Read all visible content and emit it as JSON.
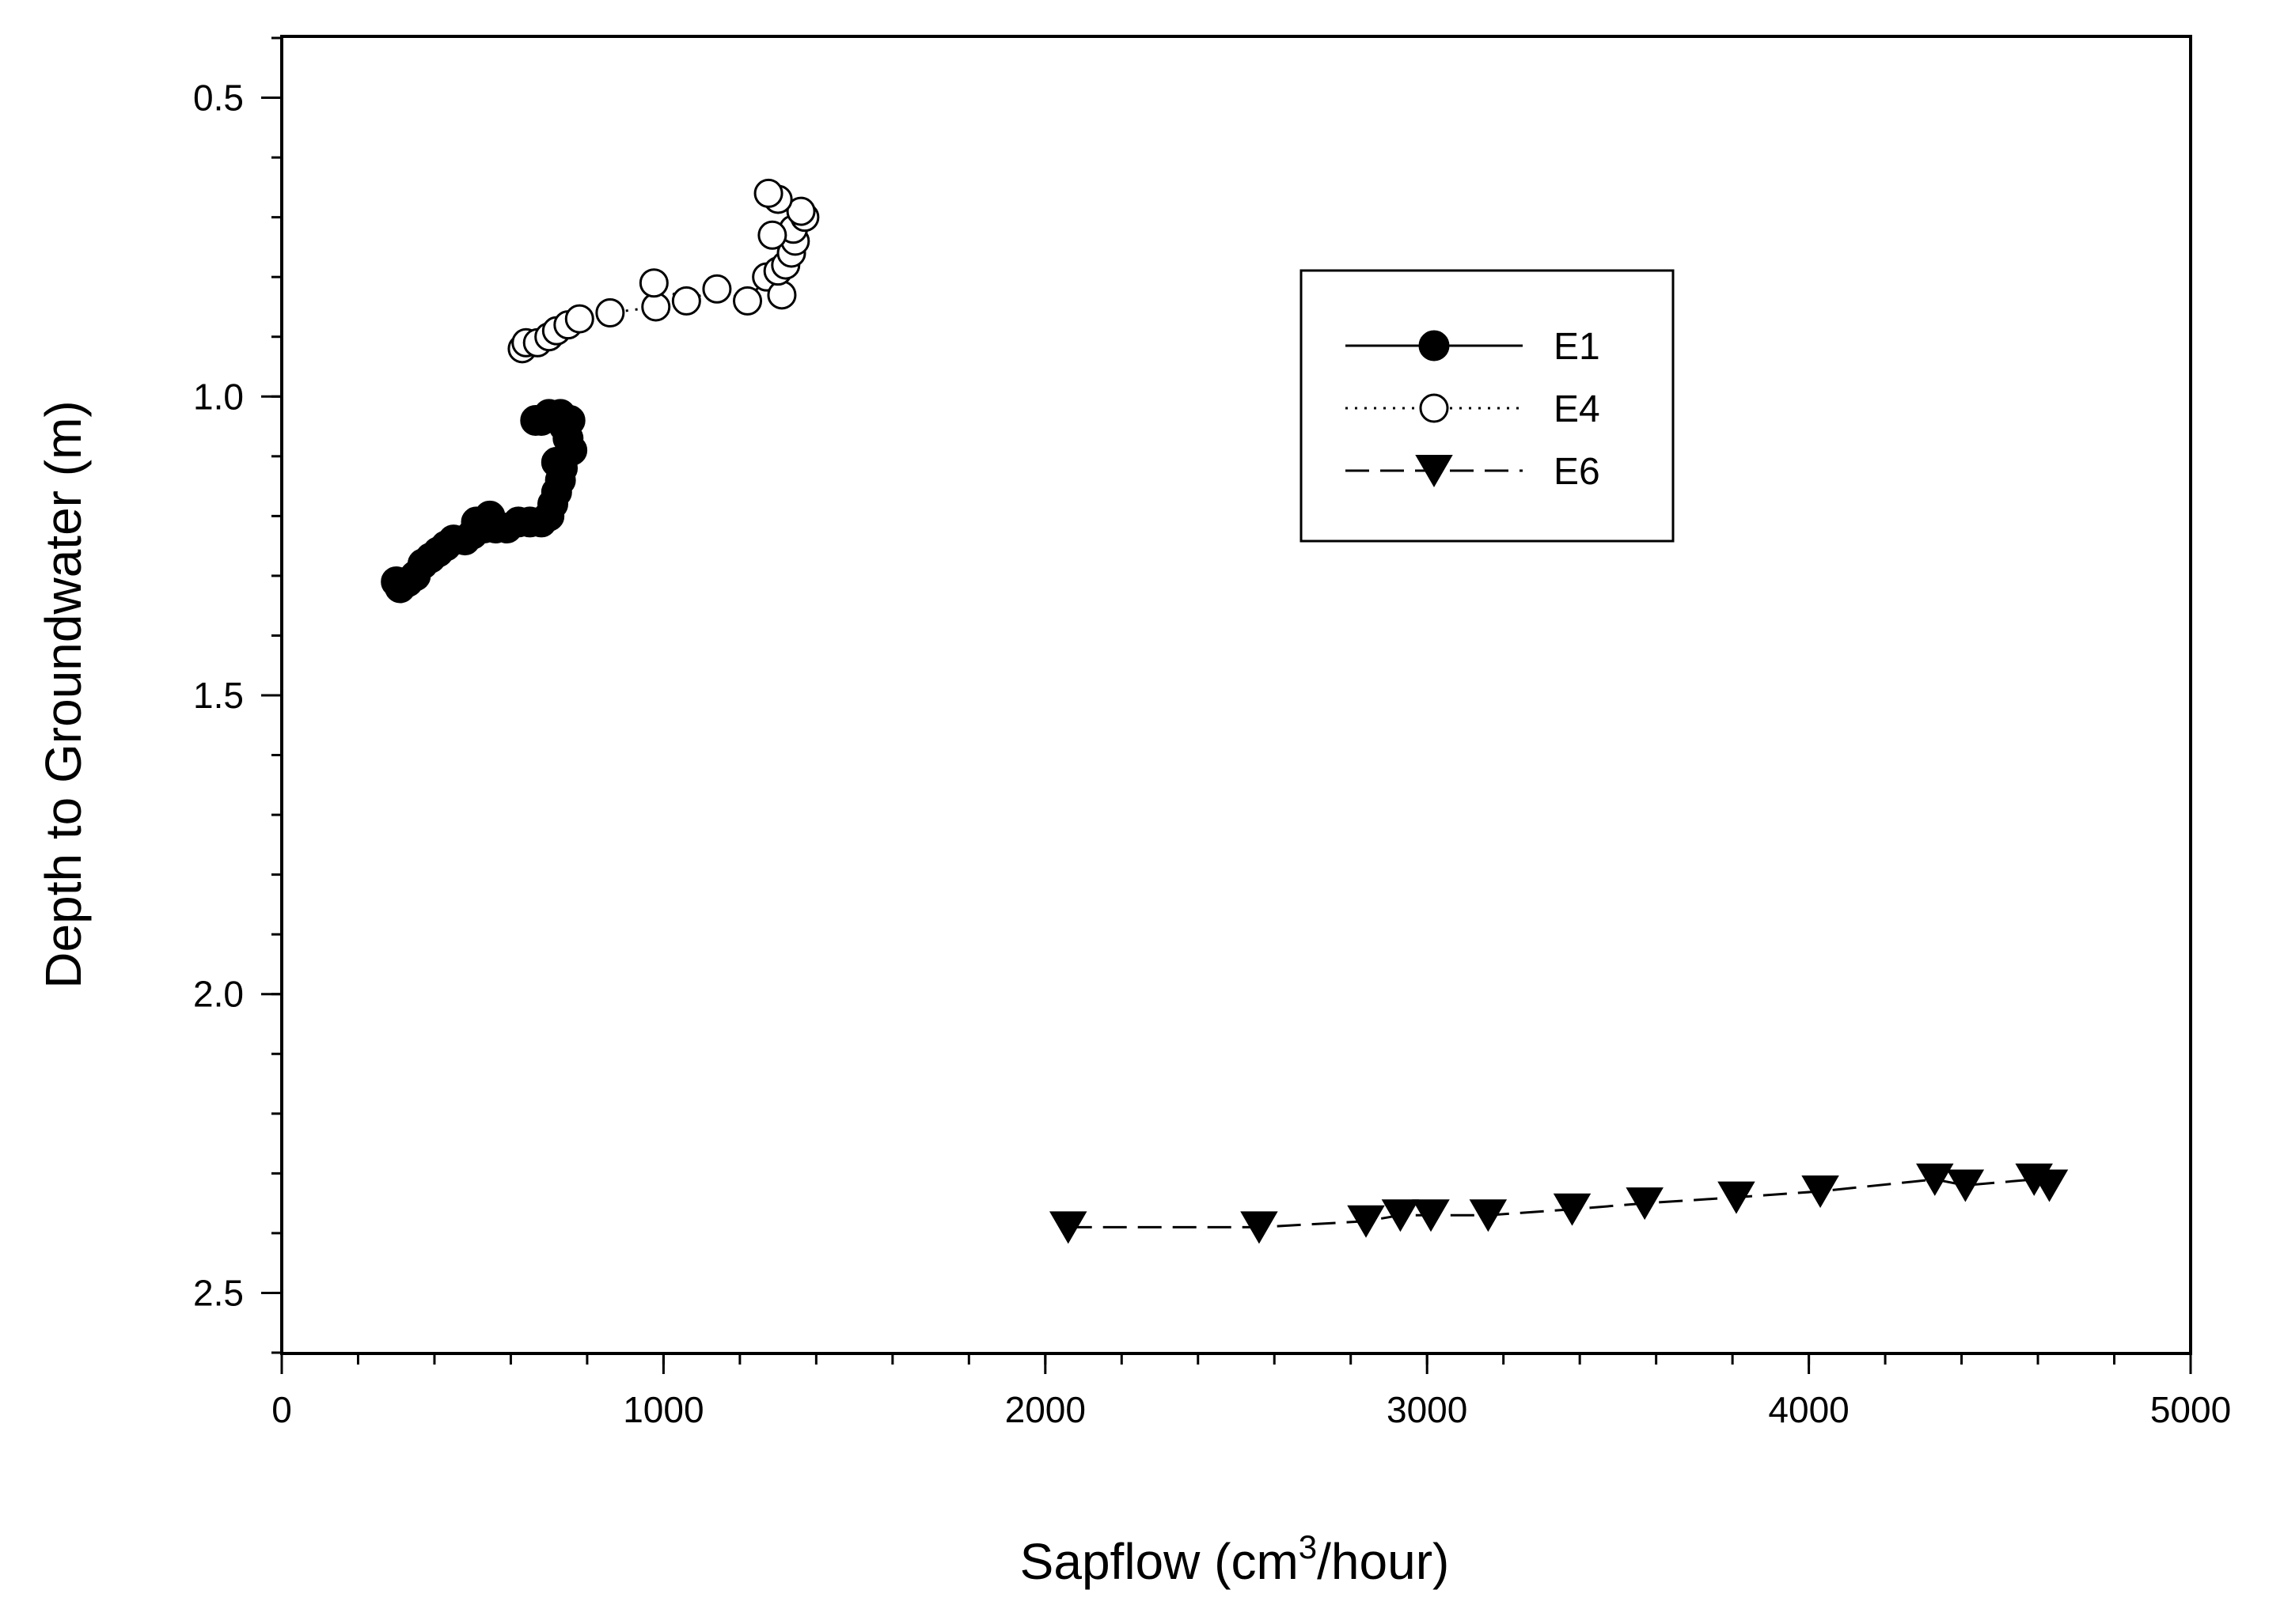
{
  "chart_data": {
    "type": "scatter",
    "title": "",
    "xlabel": "Sapflow (cm",
    "xlabel_superscript": "3",
    "xlabel_suffix": "/hour)",
    "ylabel": "Depth to Groundwater (m)",
    "xlim": [
      0,
      5000
    ],
    "ylim": [
      0.4,
      2.6
    ],
    "y_inverted": true,
    "grid": false,
    "legend_position": "upper-right",
    "x_ticks": [
      {
        "value": 0,
        "label": "0"
      },
      {
        "value": 1000,
        "label": "1000"
      },
      {
        "value": 2000,
        "label": "2000"
      },
      {
        "value": 3000,
        "label": "3000"
      },
      {
        "value": 4000,
        "label": "4000"
      },
      {
        "value": 5000,
        "label": "5000"
      }
    ],
    "x_minor_step": 200,
    "y_ticks": [
      {
        "value": 0.5,
        "label": "0.5"
      },
      {
        "value": 1.0,
        "label": "1.0"
      },
      {
        "value": 1.5,
        "label": "1.5"
      },
      {
        "value": 2.0,
        "label": "2.0"
      },
      {
        "value": 2.5,
        "label": "2.5"
      }
    ],
    "y_minor_step": 0.1,
    "series": [
      {
        "name": "E1",
        "marker": "filled-circle",
        "line": "solid",
        "color": "#000000",
        "points": [
          [
            300,
            1.31
          ],
          [
            310,
            1.32
          ],
          [
            330,
            1.31
          ],
          [
            350,
            1.3
          ],
          [
            370,
            1.28
          ],
          [
            390,
            1.27
          ],
          [
            410,
            1.26
          ],
          [
            430,
            1.25
          ],
          [
            450,
            1.24
          ],
          [
            480,
            1.24
          ],
          [
            500,
            1.23
          ],
          [
            510,
            1.21
          ],
          [
            530,
            1.22
          ],
          [
            545,
            1.2
          ],
          [
            560,
            1.22
          ],
          [
            590,
            1.22
          ],
          [
            620,
            1.21
          ],
          [
            650,
            1.21
          ],
          [
            680,
            1.21
          ],
          [
            700,
            1.2
          ],
          [
            710,
            1.18
          ],
          [
            720,
            1.16
          ],
          [
            730,
            1.14
          ],
          [
            735,
            1.12
          ],
          [
            720,
            1.11
          ],
          [
            760,
            1.09
          ],
          [
            750,
            1.07
          ],
          [
            740,
            1.05
          ],
          [
            755,
            1.04
          ],
          [
            730,
            1.03
          ],
          [
            700,
            1.03
          ],
          [
            680,
            1.04
          ],
          [
            665,
            1.04
          ]
        ]
      },
      {
        "name": "E4",
        "marker": "open-circle",
        "line": "dotted",
        "color": "#000000",
        "points": [
          [
            630,
            0.92
          ],
          [
            640,
            0.91
          ],
          [
            670,
            0.91
          ],
          [
            700,
            0.9
          ],
          [
            720,
            0.89
          ],
          [
            750,
            0.88
          ],
          [
            780,
            0.87
          ],
          [
            860,
            0.86
          ],
          [
            980,
            0.85
          ],
          [
            975,
            0.81
          ],
          [
            1060,
            0.84
          ],
          [
            1140,
            0.82
          ],
          [
            1220,
            0.84
          ],
          [
            1270,
            0.8
          ],
          [
            1310,
            0.83
          ],
          [
            1300,
            0.79
          ],
          [
            1320,
            0.78
          ],
          [
            1335,
            0.76
          ],
          [
            1345,
            0.74
          ],
          [
            1340,
            0.72
          ],
          [
            1285,
            0.73
          ],
          [
            1370,
            0.7
          ],
          [
            1360,
            0.69
          ],
          [
            1300,
            0.67
          ],
          [
            1275,
            0.66
          ]
        ]
      },
      {
        "name": "E6",
        "marker": "filled-triangle-down",
        "line": "dashed",
        "color": "#000000",
        "points": [
          [
            2060,
            2.39
          ],
          [
            2560,
            2.39
          ],
          [
            2840,
            2.38
          ],
          [
            2930,
            2.37
          ],
          [
            3010,
            2.37
          ],
          [
            3160,
            2.37
          ],
          [
            3380,
            2.36
          ],
          [
            3570,
            2.35
          ],
          [
            3810,
            2.34
          ],
          [
            4030,
            2.33
          ],
          [
            4330,
            2.31
          ],
          [
            4410,
            2.32
          ],
          [
            4590,
            2.31
          ],
          [
            4630,
            2.32
          ]
        ]
      }
    ]
  }
}
